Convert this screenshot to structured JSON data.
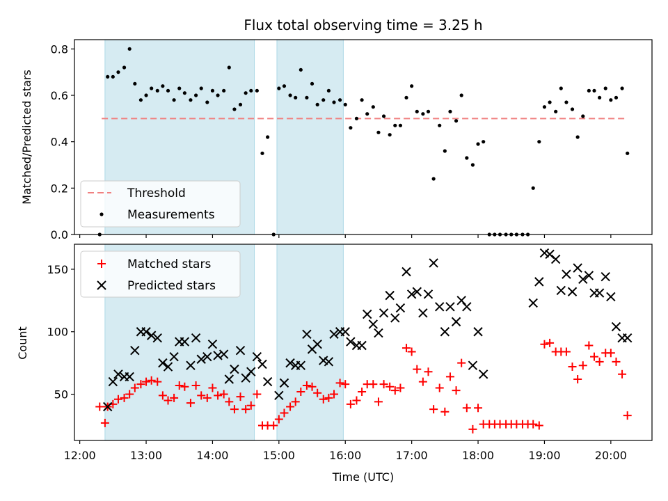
{
  "chart_data": {
    "title": "Flux total observing time = 3.25 h",
    "xlabel": "Time (UTC)",
    "x_ticks": [
      "12:00",
      "13:00",
      "14:00",
      "15:00",
      "16:00",
      "17:00",
      "18:00",
      "19:00",
      "20:00"
    ],
    "x_range_hours": [
      11.92,
      20.62
    ],
    "shaded_intervals": [
      [
        12.38,
        14.63
      ],
      [
        14.97,
        15.97
      ]
    ],
    "colors": {
      "shade": "#add8e6",
      "threshold": "#f08080",
      "matched": "#ff0000",
      "predicted": "#000000",
      "measurement": "#000000"
    },
    "top": {
      "type": "scatter",
      "ylabel": "Matched/Predicted stars",
      "ylim": [
        0,
        0.84
      ],
      "y_ticks": [
        "0.0",
        "0.2",
        "0.4",
        "0.6",
        "0.8"
      ],
      "threshold": {
        "name": "Threshold",
        "y": 0.5,
        "x_range": [
          12.33,
          20.25
        ]
      },
      "measurements": {
        "name": "Measurements",
        "x": [
          12.3,
          12.42,
          12.5,
          12.58,
          12.67,
          12.75,
          12.83,
          12.92,
          13.0,
          13.08,
          13.17,
          13.25,
          13.33,
          13.42,
          13.5,
          13.58,
          13.67,
          13.75,
          13.83,
          13.92,
          14.0,
          14.08,
          14.17,
          14.25,
          14.33,
          14.42,
          14.5,
          14.58,
          14.67,
          14.75,
          14.83,
          14.92,
          15.0,
          15.08,
          15.17,
          15.25,
          15.33,
          15.42,
          15.5,
          15.58,
          15.67,
          15.75,
          15.83,
          15.92,
          16.0,
          16.08,
          16.17,
          16.25,
          16.33,
          16.42,
          16.5,
          16.58,
          16.67,
          16.75,
          16.83,
          16.92,
          17.0,
          17.08,
          17.17,
          17.25,
          17.33,
          17.42,
          17.5,
          17.58,
          17.67,
          17.75,
          17.83,
          17.92,
          18.0,
          18.08,
          18.17,
          18.25,
          18.33,
          18.42,
          18.5,
          18.58,
          18.67,
          18.75,
          18.83,
          18.92,
          19.0,
          19.08,
          19.17,
          19.25,
          19.33,
          19.42,
          19.5,
          19.58,
          19.67,
          19.75,
          19.83,
          19.92,
          20.0,
          20.08,
          20.17,
          20.25
        ],
        "y": [
          0.0,
          0.68,
          0.68,
          0.7,
          0.72,
          0.8,
          0.65,
          0.58,
          0.6,
          0.63,
          0.62,
          0.64,
          0.62,
          0.58,
          0.63,
          0.61,
          0.58,
          0.6,
          0.63,
          0.57,
          0.62,
          0.6,
          0.62,
          0.72,
          0.54,
          0.56,
          0.61,
          0.62,
          0.62,
          0.35,
          0.42,
          0.0,
          0.63,
          0.64,
          0.6,
          0.59,
          0.71,
          0.59,
          0.65,
          0.56,
          0.58,
          0.62,
          0.57,
          0.58,
          0.56,
          0.46,
          0.5,
          0.58,
          0.52,
          0.55,
          0.44,
          0.51,
          0.43,
          0.47,
          0.47,
          0.59,
          0.64,
          0.53,
          0.52,
          0.53,
          0.24,
          0.47,
          0.36,
          0.53,
          0.49,
          0.6,
          0.33,
          0.3,
          0.39,
          0.4,
          0.0,
          0.0,
          0.0,
          0.0,
          0.0,
          0.0,
          0.0,
          0.0,
          0.2,
          0.4,
          0.55,
          0.57,
          0.53,
          0.63,
          0.57,
          0.54,
          0.42,
          0.51,
          0.62,
          0.62,
          0.59,
          0.63,
          0.58,
          0.59,
          0.63,
          0.35
        ]
      }
    },
    "bottom": {
      "type": "scatter",
      "ylabel": "Count",
      "ylim": [
        13,
        170
      ],
      "y_ticks": [
        "50",
        "100",
        "150"
      ],
      "series": [
        {
          "name": "Matched stars",
          "marker": "+",
          "x": [
            12.3,
            12.38,
            12.42,
            12.5,
            12.58,
            12.67,
            12.75,
            12.83,
            12.92,
            13.0,
            13.08,
            13.17,
            13.25,
            13.33,
            13.42,
            13.5,
            13.58,
            13.67,
            13.75,
            13.83,
            13.92,
            14.0,
            14.08,
            14.17,
            14.25,
            14.33,
            14.42,
            14.5,
            14.58,
            14.67,
            14.75,
            14.83,
            14.92,
            15.0,
            15.08,
            15.17,
            15.25,
            15.33,
            15.42,
            15.5,
            15.58,
            15.67,
            15.75,
            15.83,
            15.92,
            16.0,
            16.08,
            16.17,
            16.25,
            16.33,
            16.42,
            16.5,
            16.58,
            16.67,
            16.75,
            16.83,
            16.92,
            17.0,
            17.08,
            17.17,
            17.25,
            17.33,
            17.42,
            17.5,
            17.58,
            17.67,
            17.75,
            17.83,
            17.92,
            18.0,
            18.08,
            18.17,
            18.25,
            18.33,
            18.42,
            18.5,
            18.58,
            18.67,
            18.75,
            18.83,
            18.92,
            19.0,
            19.08,
            19.17,
            19.25,
            19.33,
            19.42,
            19.5,
            19.58,
            19.67,
            19.75,
            19.83,
            19.92,
            20.0,
            20.08,
            20.17,
            20.25
          ],
          "y": [
            40,
            27,
            40,
            42,
            46,
            47,
            50,
            55,
            58,
            60,
            61,
            60,
            49,
            45,
            47,
            57,
            56,
            43,
            57,
            49,
            47,
            55,
            49,
            50,
            44,
            38,
            48,
            38,
            41,
            50,
            25,
            25,
            25,
            30,
            35,
            40,
            44,
            52,
            57,
            56,
            51,
            46,
            47,
            50,
            59,
            58,
            42,
            45,
            52,
            58,
            58,
            44,
            58,
            56,
            53,
            55,
            87,
            84,
            70,
            60,
            68,
            38,
            55,
            36,
            64,
            53,
            75,
            39,
            22,
            39,
            26,
            26,
            26,
            26,
            26,
            26,
            26,
            26,
            26,
            26,
            25,
            90,
            91,
            84,
            84,
            84,
            72,
            62,
            73,
            89,
            80,
            76,
            83,
            83,
            76,
            66,
            33
          ]
        },
        {
          "name": "Predicted stars",
          "marker": "x",
          "x": [
            12.42,
            12.5,
            12.58,
            12.67,
            12.75,
            12.83,
            12.92,
            13.0,
            13.08,
            13.17,
            13.25,
            13.33,
            13.42,
            13.5,
            13.58,
            13.67,
            13.75,
            13.83,
            13.92,
            14.0,
            14.08,
            14.17,
            14.25,
            14.33,
            14.42,
            14.5,
            14.58,
            14.67,
            14.75,
            14.83,
            15.0,
            15.08,
            15.17,
            15.25,
            15.33,
            15.42,
            15.5,
            15.58,
            15.67,
            15.75,
            15.83,
            15.92,
            16.0,
            16.08,
            16.17,
            16.25,
            16.33,
            16.42,
            16.5,
            16.58,
            16.67,
            16.75,
            16.83,
            16.92,
            17.0,
            17.08,
            17.17,
            17.25,
            17.33,
            17.42,
            17.5,
            17.58,
            17.67,
            17.75,
            17.83,
            17.92,
            18.0,
            18.08,
            18.83,
            18.92,
            19.0,
            19.08,
            19.17,
            19.25,
            19.33,
            19.42,
            19.5,
            19.58,
            19.67,
            19.75,
            19.83,
            19.92,
            20.0,
            20.08,
            20.17,
            20.25
          ],
          "y": [
            40,
            60,
            66,
            64,
            64,
            85,
            100,
            100,
            97,
            95,
            75,
            72,
            80,
            92,
            92,
            73,
            95,
            78,
            80,
            90,
            81,
            82,
            62,
            70,
            85,
            63,
            68,
            80,
            74,
            60,
            49,
            59,
            75,
            73,
            73,
            98,
            86,
            90,
            77,
            76,
            98,
            100,
            100,
            92,
            89,
            89,
            114,
            106,
            99,
            115,
            129,
            111,
            119,
            148,
            130,
            132,
            115,
            130,
            155,
            120,
            100,
            120,
            108,
            125,
            120,
            73,
            100,
            66,
            123,
            140,
            163,
            162,
            158,
            133,
            146,
            132,
            151,
            142,
            145,
            131,
            131,
            144,
            128,
            104,
            95,
            95
          ]
        }
      ]
    }
  }
}
